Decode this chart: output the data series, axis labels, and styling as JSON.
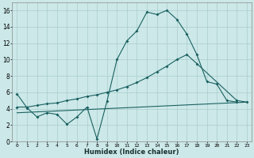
{
  "title": "",
  "xlabel": "Humidex (Indice chaleur)",
  "bg_color": "#cce8e8",
  "grid_color": "#aacccc",
  "line_color": "#1a6060",
  "xlim": [
    -0.5,
    23.5
  ],
  "ylim": [
    0,
    17
  ],
  "xticks": [
    0,
    1,
    2,
    3,
    4,
    5,
    6,
    7,
    8,
    9,
    10,
    11,
    12,
    13,
    14,
    15,
    16,
    17,
    18,
    19,
    20,
    21,
    22,
    23
  ],
  "yticks": [
    0,
    2,
    4,
    6,
    8,
    10,
    12,
    14,
    16
  ],
  "curve1_x": [
    0,
    1,
    2,
    3,
    4,
    5,
    6,
    7,
    8,
    9,
    10,
    11,
    12,
    13,
    14,
    15,
    16,
    17,
    18,
    19,
    20,
    21,
    22
  ],
  "curve1_y": [
    5.8,
    4.1,
    3.0,
    3.5,
    3.3,
    2.1,
    3.0,
    4.2,
    0.3,
    4.9,
    10.0,
    12.3,
    13.5,
    15.8,
    15.5,
    16.0,
    14.9,
    13.1,
    10.6,
    7.3,
    7.0,
    5.0,
    4.8
  ],
  "curve2_x": [
    0,
    1,
    2,
    3,
    4,
    5,
    6,
    7,
    8,
    9,
    10,
    11,
    12,
    13,
    14,
    15,
    16,
    17,
    18,
    22,
    23
  ],
  "curve2_y": [
    4.2,
    4.2,
    4.4,
    4.6,
    4.7,
    5.0,
    5.2,
    5.5,
    5.7,
    6.0,
    6.3,
    6.7,
    7.2,
    7.8,
    8.5,
    9.2,
    10.0,
    10.6,
    9.5,
    5.0,
    4.8
  ],
  "curve3_x": [
    0,
    23
  ],
  "curve3_y": [
    3.5,
    4.8
  ]
}
